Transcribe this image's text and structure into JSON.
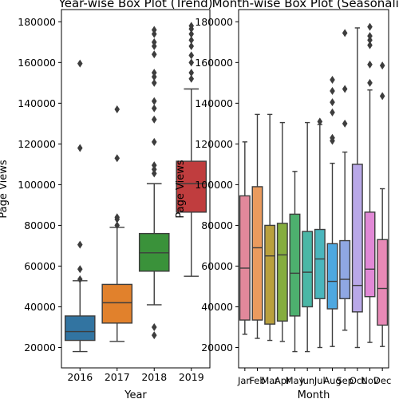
{
  "chart_data": [
    {
      "type": "box",
      "title": "Year-wise Box Plot (Trend)",
      "xlabel": "Year",
      "ylabel": "Page Views",
      "ylim": [
        10000,
        186000
      ],
      "yticks": [
        20000,
        40000,
        60000,
        80000,
        100000,
        120000,
        140000,
        160000,
        180000
      ],
      "categories": [
        "2016",
        "2017",
        "2018",
        "2019"
      ],
      "boxes": [
        {
          "category": "2016",
          "color": "#3274a1",
          "whisker_low": 18000,
          "q1": 23500,
          "median": 27800,
          "q3": 35500,
          "whisker_high": 52800,
          "outliers": [
            53500,
            58500,
            70500,
            118000,
            159500
          ]
        },
        {
          "category": "2017",
          "color": "#e1812c",
          "whisker_low": 23000,
          "q1": 32000,
          "median": 42000,
          "q3": 51000,
          "whisker_high": 79000,
          "outliers": [
            80000,
            83000,
            84000,
            113000,
            137000
          ]
        },
        {
          "category": "2018",
          "color": "#3a923a",
          "whisker_low": 41000,
          "q1": 57500,
          "median": 66500,
          "q3": 76000,
          "whisker_high": 100500,
          "outliers": [
            26000,
            30000,
            105500,
            107500,
            109500,
            121000,
            132000,
            137500,
            141000,
            150000,
            153000,
            155000,
            164000,
            168000,
            170000,
            174000,
            176000
          ]
        },
        {
          "category": "2019",
          "color": "#c03d3e",
          "whisker_low": 55000,
          "q1": 86500,
          "median": 100500,
          "q3": 111500,
          "whisker_high": 147000,
          "outliers": [
            152000,
            155000,
            160000,
            163500,
            168000,
            171000,
            174000,
            176500,
            178000
          ]
        }
      ]
    },
    {
      "type": "box",
      "title": "Month-wise Box Plot (Seasonality)",
      "xlabel": "Month",
      "ylabel": "Page Views",
      "ylim": [
        10000,
        186000
      ],
      "yticks": [
        20000,
        40000,
        60000,
        80000,
        100000,
        120000,
        140000,
        160000,
        180000
      ],
      "categories": [
        "Jan",
        "Feb",
        "Mar",
        "Apr",
        "May",
        "Jun",
        "Jul",
        "Aug",
        "Sep",
        "Oct",
        "Nov",
        "Dec"
      ],
      "boxes": [
        {
          "category": "Jan",
          "color": "#e1889b",
          "whisker_low": 26500,
          "q1": 33500,
          "median": 59000,
          "q3": 94500,
          "whisker_high": 121000,
          "outliers": []
        },
        {
          "category": "Feb",
          "color": "#ea9b5e",
          "whisker_low": 24500,
          "q1": 33500,
          "median": 69000,
          "q3": 99000,
          "whisker_high": 134500,
          "outliers": []
        },
        {
          "category": "Mar",
          "color": "#b9a03e",
          "whisker_low": 23500,
          "q1": 31500,
          "median": 65000,
          "q3": 80000,
          "whisker_high": 134500,
          "outliers": []
        },
        {
          "category": "Apr",
          "color": "#85ad3e",
          "whisker_low": 23000,
          "q1": 33000,
          "median": 65500,
          "q3": 81000,
          "whisker_high": 130500,
          "outliers": []
        },
        {
          "category": "May",
          "color": "#4db06e",
          "whisker_low": 18000,
          "q1": 35500,
          "median": 56500,
          "q3": 85500,
          "whisker_high": 106500,
          "outliers": []
        },
        {
          "category": "Jun",
          "color": "#4ab7a6",
          "whisker_low": 18000,
          "q1": 40000,
          "median": 57000,
          "q3": 77000,
          "whisker_high": 130500,
          "outliers": []
        },
        {
          "category": "Jul",
          "color": "#4ab6bd",
          "whisker_low": 20000,
          "q1": 44000,
          "median": 63500,
          "q3": 78000,
          "whisker_high": 129500,
          "outliers": [
            131000
          ]
        },
        {
          "category": "Aug",
          "color": "#4ea8e0",
          "whisker_low": 20500,
          "q1": 39000,
          "median": 52500,
          "q3": 71000,
          "whisker_high": 110500,
          "outliers": [
            121500,
            123000,
            135500,
            140500,
            146000,
            151500
          ]
        },
        {
          "category": "Sep",
          "color": "#8fa7e3",
          "whisker_low": 28500,
          "q1": 44000,
          "median": 53500,
          "q3": 72500,
          "whisker_high": 116000,
          "outliers": [
            130000,
            147000,
            174500
          ]
        },
        {
          "category": "Oct",
          "color": "#b9a8e8",
          "whisker_low": 20000,
          "q1": 37500,
          "median": 50500,
          "q3": 110000,
          "whisker_high": 177000,
          "outliers": []
        },
        {
          "category": "Nov",
          "color": "#e189d6",
          "whisker_low": 22500,
          "q1": 45000,
          "median": 58500,
          "q3": 86500,
          "whisker_high": 146500,
          "outliers": [
            150000,
            159000,
            168500,
            171000,
            173000,
            177500
          ]
        },
        {
          "category": "Dec",
          "color": "#e889b6",
          "whisker_low": 20500,
          "q1": 31000,
          "median": 49000,
          "q3": 73000,
          "whisker_high": 98000,
          "outliers": [
            143500,
            158500
          ]
        }
      ]
    }
  ]
}
